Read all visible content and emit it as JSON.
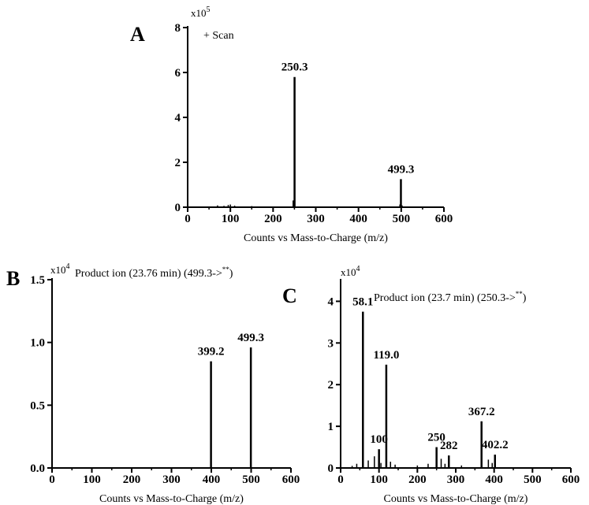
{
  "chart_data": [
    {
      "panel": "A",
      "type": "bar",
      "scan_label": "+ Scan",
      "y_multiplier": "x10",
      "y_exponent": "5",
      "xlabel": "Counts vs Mass-to-Charge (m/z)",
      "xlim": [
        0,
        600
      ],
      "ylim": [
        0,
        8
      ],
      "x_ticks": [
        0,
        100,
        200,
        300,
        400,
        500,
        600
      ],
      "y_ticks": [
        "0",
        "2",
        "4",
        "6",
        "8"
      ],
      "y_tick_values": [
        0,
        2,
        4,
        6,
        8
      ],
      "peaks": [
        {
          "mz": 250.3,
          "intensity": 5.8,
          "label": "250.3"
        },
        {
          "mz": 499.3,
          "intensity": 1.25,
          "label": "499.3"
        }
      ],
      "minor_peaks": [
        {
          "mz": 70,
          "intensity": 0.08
        },
        {
          "mz": 85,
          "intensity": 0.06
        },
        {
          "mz": 95,
          "intensity": 0.1
        },
        {
          "mz": 100,
          "intensity": 0.12
        },
        {
          "mz": 110,
          "intensity": 0.07
        },
        {
          "mz": 150,
          "intensity": 0.05
        },
        {
          "mz": 247,
          "intensity": 0.3
        },
        {
          "mz": 497,
          "intensity": 0.12
        },
        {
          "mz": 502,
          "intensity": 0.08
        }
      ]
    },
    {
      "panel": "B",
      "type": "bar",
      "scan_label": "Product ion (23.76 min) (499.3->**)",
      "y_multiplier": "x10",
      "y_exponent": "4",
      "xlabel": "Counts vs Mass-to-Charge (m/z)",
      "xlim": [
        0,
        600
      ],
      "ylim": [
        0,
        1.5
      ],
      "x_ticks": [
        0,
        100,
        200,
        300,
        400,
        500,
        600
      ],
      "y_ticks": [
        "0.0",
        "0.5",
        "1.0",
        "1.5"
      ],
      "y_tick_values": [
        0,
        0.5,
        1.0,
        1.5
      ],
      "peaks": [
        {
          "mz": 399.2,
          "intensity": 0.85,
          "label": "399.2"
        },
        {
          "mz": 499.3,
          "intensity": 0.96,
          "label": "499.3"
        }
      ],
      "minor_peaks": []
    },
    {
      "panel": "C",
      "type": "bar",
      "scan_label": "Product ion (23.7 min) (250.3->**)",
      "y_multiplier": "x10",
      "y_exponent": "4",
      "xlabel": "Counts vs Mass-to-Charge (m/z)",
      "xlim": [
        0,
        600
      ],
      "ylim": [
        0,
        4.5
      ],
      "x_ticks": [
        0,
        100,
        200,
        300,
        400,
        500,
        600
      ],
      "y_ticks": [
        "0",
        "1",
        "2",
        "3",
        "4"
      ],
      "y_tick_values": [
        0,
        1,
        2,
        3,
        4
      ],
      "peaks": [
        {
          "mz": 58.1,
          "intensity": 3.75,
          "label": "58.1"
        },
        {
          "mz": 100,
          "intensity": 0.45,
          "label": "100"
        },
        {
          "mz": 119.0,
          "intensity": 2.48,
          "label": "119.0"
        },
        {
          "mz": 250,
          "intensity": 0.5,
          "label": "250"
        },
        {
          "mz": 282,
          "intensity": 0.3,
          "label": "282"
        },
        {
          "mz": 367.2,
          "intensity": 1.12,
          "label": "367.2"
        },
        {
          "mz": 402.2,
          "intensity": 0.32,
          "label": "402.2"
        }
      ],
      "minor_peaks": [
        {
          "mz": 30,
          "intensity": 0.05
        },
        {
          "mz": 42,
          "intensity": 0.1
        },
        {
          "mz": 72,
          "intensity": 0.18
        },
        {
          "mz": 88,
          "intensity": 0.28
        },
        {
          "mz": 105,
          "intensity": 0.12
        },
        {
          "mz": 130,
          "intensity": 0.15
        },
        {
          "mz": 142,
          "intensity": 0.08
        },
        {
          "mz": 200,
          "intensity": 0.06
        },
        {
          "mz": 228,
          "intensity": 0.1
        },
        {
          "mz": 262,
          "intensity": 0.22
        },
        {
          "mz": 272,
          "intensity": 0.1
        },
        {
          "mz": 315,
          "intensity": 0.06
        },
        {
          "mz": 385,
          "intensity": 0.2
        },
        {
          "mz": 395,
          "intensity": 0.12
        }
      ]
    }
  ]
}
